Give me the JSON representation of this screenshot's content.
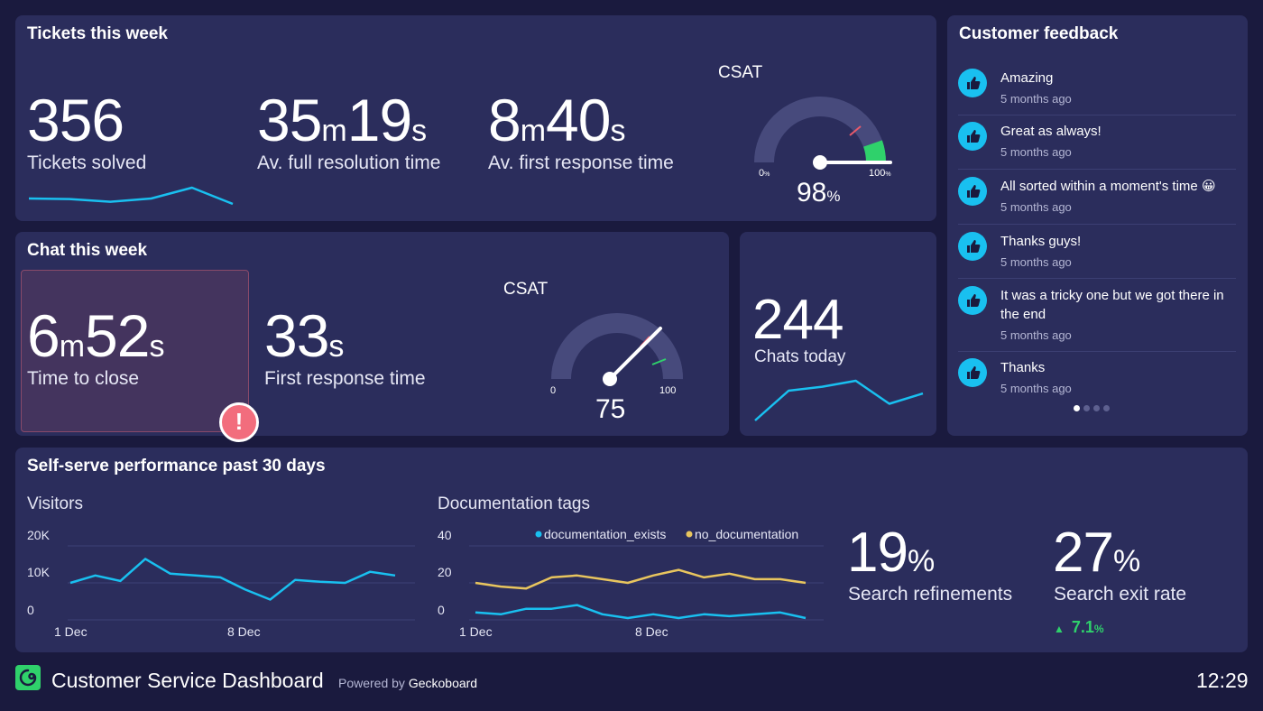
{
  "tickets": {
    "title": "Tickets this week",
    "solved": {
      "value": "356",
      "label": "Tickets solved"
    },
    "resolution": {
      "min": "35",
      "min_unit": "m",
      "sec": "19",
      "sec_unit": "s",
      "label": "Av. full resolution time"
    },
    "first_response": {
      "min": "8",
      "min_unit": "m",
      "sec": "40",
      "sec_unit": "s",
      "label": "Av. first response time"
    },
    "csat": {
      "label": "CSAT",
      "value": "98",
      "unit": "%",
      "min": "0",
      "min_unit": "%",
      "max": "100",
      "max_unit": "%",
      "fraction": 0.98
    },
    "sparkline": [
      0.3,
      0.28,
      0.18,
      0.3,
      0.7,
      0.1
    ]
  },
  "chat": {
    "title": "Chat this week",
    "close": {
      "min": "6",
      "min_unit": "m",
      "sec": "52",
      "sec_unit": "s",
      "label": "Time to close",
      "alert": "!"
    },
    "first_response": {
      "sec": "33",
      "sec_unit": "s",
      "label": "First response time"
    },
    "csat": {
      "label": "CSAT",
      "value": "75",
      "min": "0",
      "max": "100",
      "fraction": 0.75
    }
  },
  "chats_today": {
    "value": "244",
    "label": "Chats today",
    "sparkline": [
      0.0,
      0.75,
      0.85,
      1.0,
      0.42,
      0.68
    ]
  },
  "feedback": {
    "title": "Customer feedback",
    "items": [
      {
        "text": "Amazing",
        "time": "5 months ago"
      },
      {
        "text": "Great as always!",
        "time": "5 months ago"
      },
      {
        "text": "All sorted within a moment's time 😀",
        "time": "5 months ago"
      },
      {
        "text": "Thanks guys!",
        "time": "5 months ago"
      },
      {
        "text": "It was a tricky one but we got there in the end",
        "time": "5 months ago"
      },
      {
        "text": "Thanks",
        "time": "5 months ago"
      }
    ],
    "page_count": 4,
    "active_page": 0
  },
  "selfserve": {
    "title": "Self-serve performance past 30 days",
    "visitors": {
      "title": "Visitors",
      "yticks": [
        "20K",
        "10K",
        "0"
      ],
      "xticks": [
        "1 Dec",
        "8 Dec"
      ]
    },
    "doc_tags": {
      "title": "Documentation tags",
      "yticks": [
        "40",
        "20",
        "0"
      ],
      "xticks": [
        "1 Dec",
        "8 Dec"
      ],
      "legend": [
        "documentation_exists",
        "no_documentation"
      ]
    },
    "refinements": {
      "value": "19",
      "unit": "%",
      "label": "Search refinements"
    },
    "exit_rate": {
      "value": "27",
      "unit": "%",
      "label": "Search exit rate",
      "change": "7.1",
      "change_unit": "%",
      "change_color": "#2fd16b"
    }
  },
  "chart_data": [
    {
      "type": "line",
      "title": "Visitors",
      "x": [
        "1 Dec",
        "2 Dec",
        "3 Dec",
        "4 Dec",
        "5 Dec",
        "6 Dec",
        "7 Dec",
        "8 Dec",
        "9 Dec",
        "10 Dec",
        "11 Dec",
        "12 Dec",
        "13 Dec",
        "14 Dec"
      ],
      "series": [
        {
          "values": [
            10000,
            12000,
            10500,
            16500,
            12500,
            12000,
            11500,
            8200,
            5500,
            10800,
            10300,
            10000,
            13000,
            12000
          ]
        }
      ],
      "ylim": [
        0,
        20000
      ],
      "ytick_labels": [
        "0",
        "10K",
        "20K"
      ],
      "grid": true,
      "color": "#19c0f0"
    },
    {
      "type": "line",
      "title": "Documentation tags",
      "x": [
        "1 Dec",
        "2 Dec",
        "3 Dec",
        "4 Dec",
        "5 Dec",
        "6 Dec",
        "7 Dec",
        "8 Dec",
        "9 Dec",
        "10 Dec",
        "11 Dec",
        "12 Dec",
        "13 Dec",
        "14 Dec"
      ],
      "series": [
        {
          "name": "documentation_exists",
          "color": "#19c0f0",
          "values": [
            4,
            3,
            6,
            6,
            8,
            3,
            1,
            3,
            1,
            3,
            2,
            3,
            4,
            1
          ]
        },
        {
          "name": "no_documentation",
          "color": "#e8c55e",
          "values": [
            20,
            18,
            17,
            23,
            24,
            22,
            20,
            24,
            27,
            23,
            25,
            22,
            22,
            20
          ]
        }
      ],
      "ylim": [
        0,
        40
      ],
      "grid": true,
      "legend": "top-right"
    }
  ]
}
